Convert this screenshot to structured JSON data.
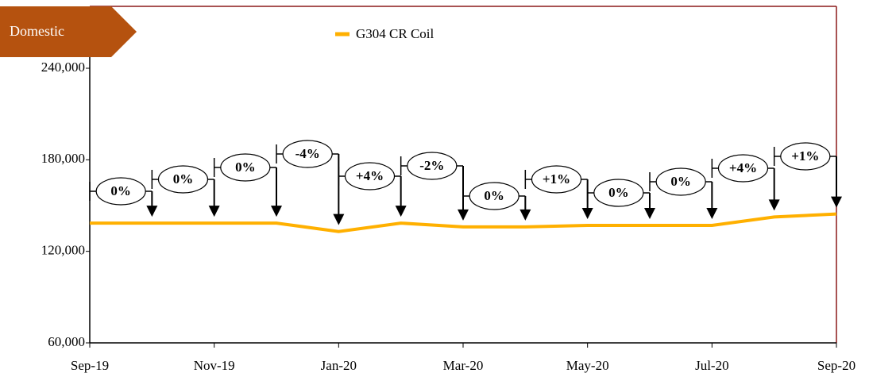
{
  "chart_data": {
    "type": "line",
    "tag": "Domestic",
    "categories": [
      "Sep-19",
      null,
      "Nov-19",
      null,
      "Jan-20",
      null,
      "Mar-20",
      null,
      "May-20",
      null,
      "Jul-20",
      null,
      "Sep-20"
    ],
    "series": [
      {
        "name": "G304 CR Coil",
        "color": "#ffb000",
        "values": [
          138500,
          138500,
          138500,
          138500,
          133000,
          138500,
          136000,
          136000,
          137000,
          137000,
          137000,
          142500,
          144500
        ]
      }
    ],
    "annotations": [
      "0%",
      "0%",
      "0%",
      "-4%",
      "+4%",
      "-2%",
      "0%",
      "+1%",
      "0%",
      "0%",
      "+4%",
      "+1%"
    ],
    "ylim": [
      60000,
      240000
    ],
    "yticks": [
      {
        "value": 60000,
        "label": "60,000"
      },
      {
        "value": 120000,
        "label": "120,000"
      },
      {
        "value": 180000,
        "label": "180,000"
      },
      {
        "value": 240000,
        "label": "240,000"
      }
    ]
  }
}
